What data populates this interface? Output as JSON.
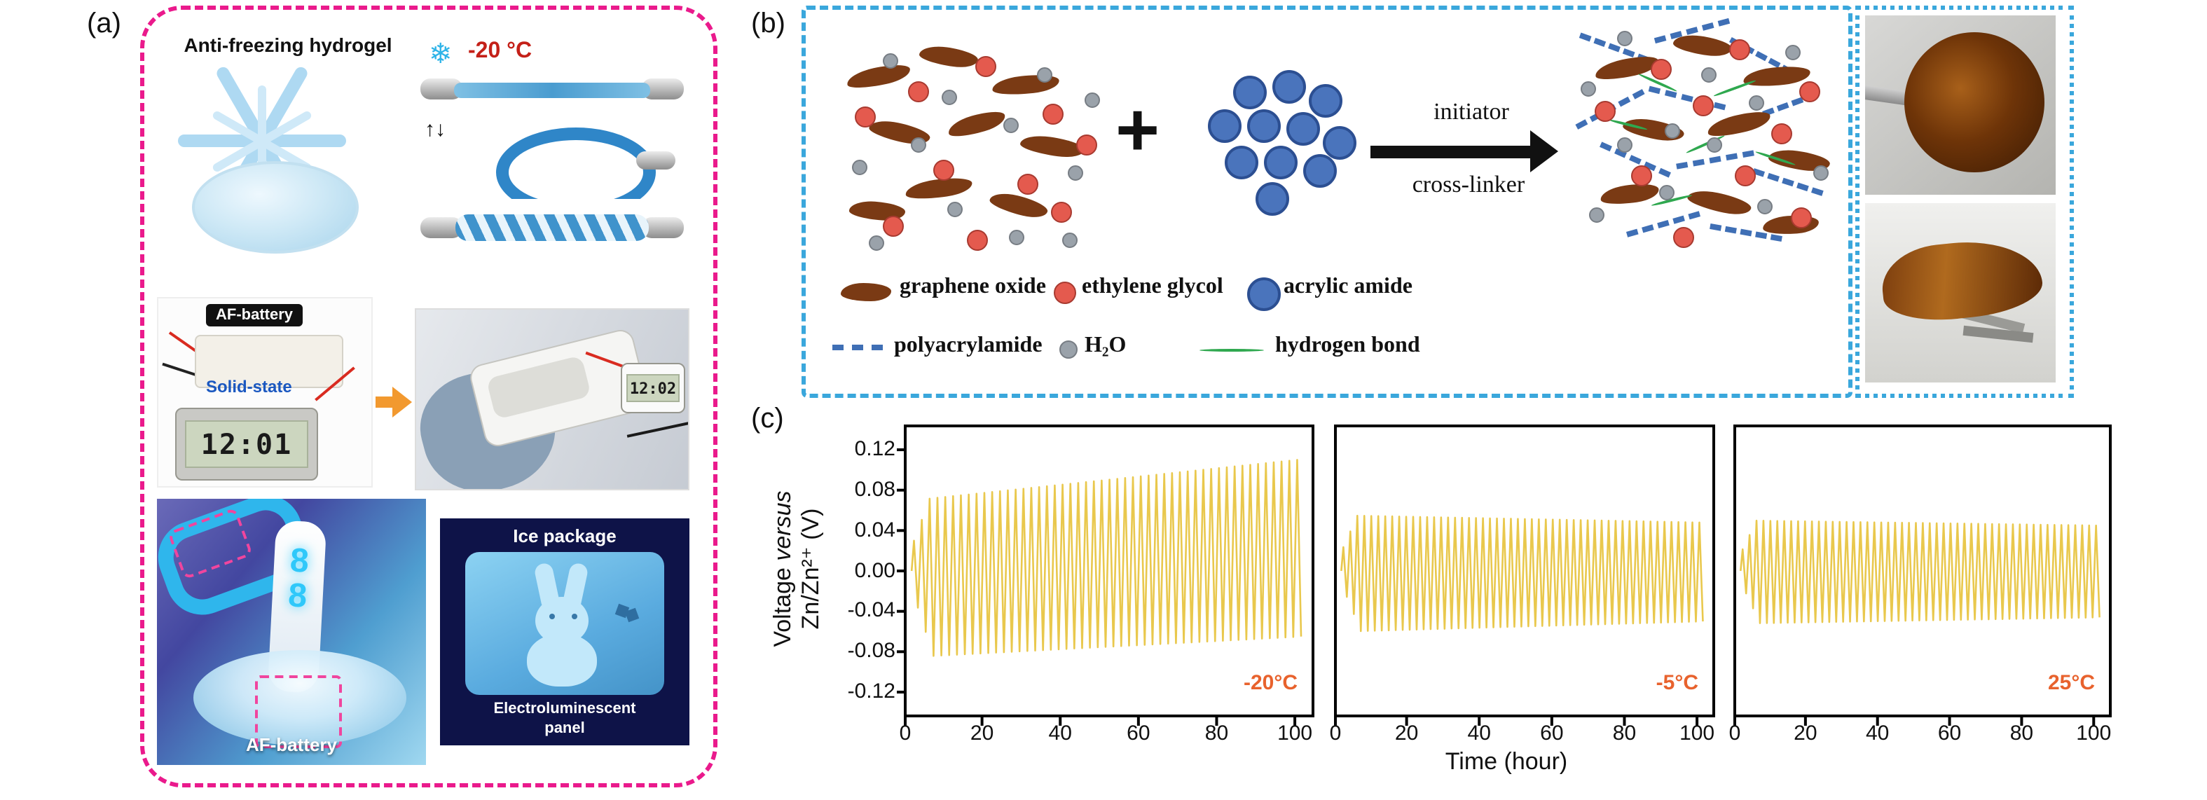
{
  "a": {
    "panel_label": "(a)",
    "title": "Anti-freezing hydrogel",
    "temp": "-20 °C",
    "stretch_arrows": "↑↓",
    "af_battery_top": "AF-battery",
    "solid_state": "Solid-state",
    "clock_before": "12:01",
    "clock_after": "12:02",
    "led_digit_1": "8",
    "led_digit_2": "8",
    "af_battery_bottom": "AF-battery",
    "ice_package": "Ice package",
    "el_line1": "Electroluminescent",
    "el_line2": "panel"
  },
  "b": {
    "panel_label": "(b)",
    "plus": "+",
    "arrow_label_top": "initiator",
    "arrow_label_bottom": "cross-linker",
    "legend_graphene": "graphene oxide",
    "legend_ethylene": "ethylene glycol",
    "legend_acrylic": "acrylic amide",
    "legend_polyacrylamide": "polyacrylamide",
    "legend_water": "H₂O",
    "legend_hbond": "hydrogen bond"
  },
  "c": {
    "panel_label": "(c)",
    "ylabel_pre": "Voltage ",
    "ylabel_italic": "versus",
    "ylabel_line2": "Zn/Zn²⁺ (V)",
    "xlabel": "Time (hour)"
  },
  "icons": {
    "snowflake": "❄"
  },
  "colors": {
    "panel_a_border": "#ea1a8c",
    "panel_b_border": "#3aa7dc",
    "temp_text": "#c42018",
    "trace_yellow": "#e9c84d",
    "temp_label_orange": "#e8622d"
  },
  "chart_data": {
    "type": "line",
    "title": "",
    "xlabel": "Time (hour)",
    "ylabel": "Voltage versus Zn/Zn²⁺ (V)",
    "xlim": [
      0,
      105
    ],
    "ylim": [
      -0.145,
      0.145
    ],
    "x_ticks": [
      0,
      20,
      40,
      60,
      80,
      100
    ],
    "y_ticks": [
      0.12,
      0.08,
      0.04,
      0,
      -0.04,
      -0.08,
      -0.12
    ],
    "y_tick_labels": [
      "0.12",
      "0.08",
      "0.04",
      "0.00",
      "-0.04",
      "-0.08",
      "-0.12"
    ],
    "grid": false,
    "legend_position": "none",
    "line_color": "#e9c84d",
    "label_color": "#e8622d",
    "subplots": [
      {
        "label": "-20°C",
        "t_start": 2,
        "t_end": 102,
        "cycles": 50,
        "top_start": 0.07,
        "top_end": 0.11,
        "bottom_start": -0.085,
        "bottom_end": -0.065
      },
      {
        "label": "-5°C",
        "t_start": 2,
        "t_end": 102,
        "cycles": 52,
        "top_start": 0.055,
        "top_end": 0.048,
        "bottom_start": -0.06,
        "bottom_end": -0.05
      },
      {
        "label": "25°C",
        "t_start": 2,
        "t_end": 102,
        "cycles": 52,
        "top_start": 0.05,
        "top_end": 0.045,
        "bottom_start": -0.052,
        "bottom_end": -0.046
      }
    ]
  }
}
